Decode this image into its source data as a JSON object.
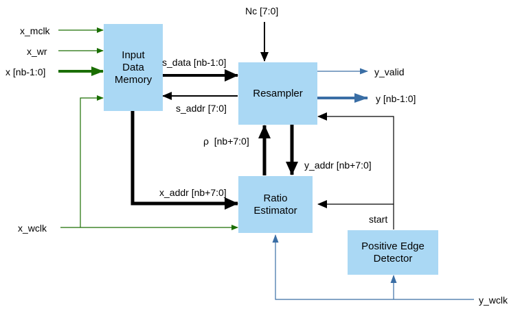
{
  "colors": {
    "block_fill": "#aad8f4",
    "green_signal": "#1a6e00",
    "blue_signal": "#3a6ea5",
    "black_signal": "#000000",
    "background": "#ffffff"
  },
  "blocks": {
    "input_memory": "Input\nData\nMemory",
    "resampler": "Resampler",
    "ratio_estimator": "Ratio\nEstimator",
    "edge_detector": "Positive Edge\nDetector"
  },
  "signals": {
    "x_mclk": "x_mclk",
    "x_wr": "x_wr",
    "x_data": "x [nb-1:0]",
    "nc": "Nc [7:0]",
    "s_data": "s_data [nb-1:0]",
    "s_addr": "s_addr [7:0]",
    "y_valid": "y_valid",
    "y_data": "y [nb-1:0]",
    "rho": "ρ  [nb+7:0]",
    "y_addr": "y_addr [nb+7:0]",
    "x_addr": "x_addr [nb+7:0]",
    "x_wclk": "x_wclk",
    "start": "start",
    "y_wclk": "y_wclk"
  }
}
